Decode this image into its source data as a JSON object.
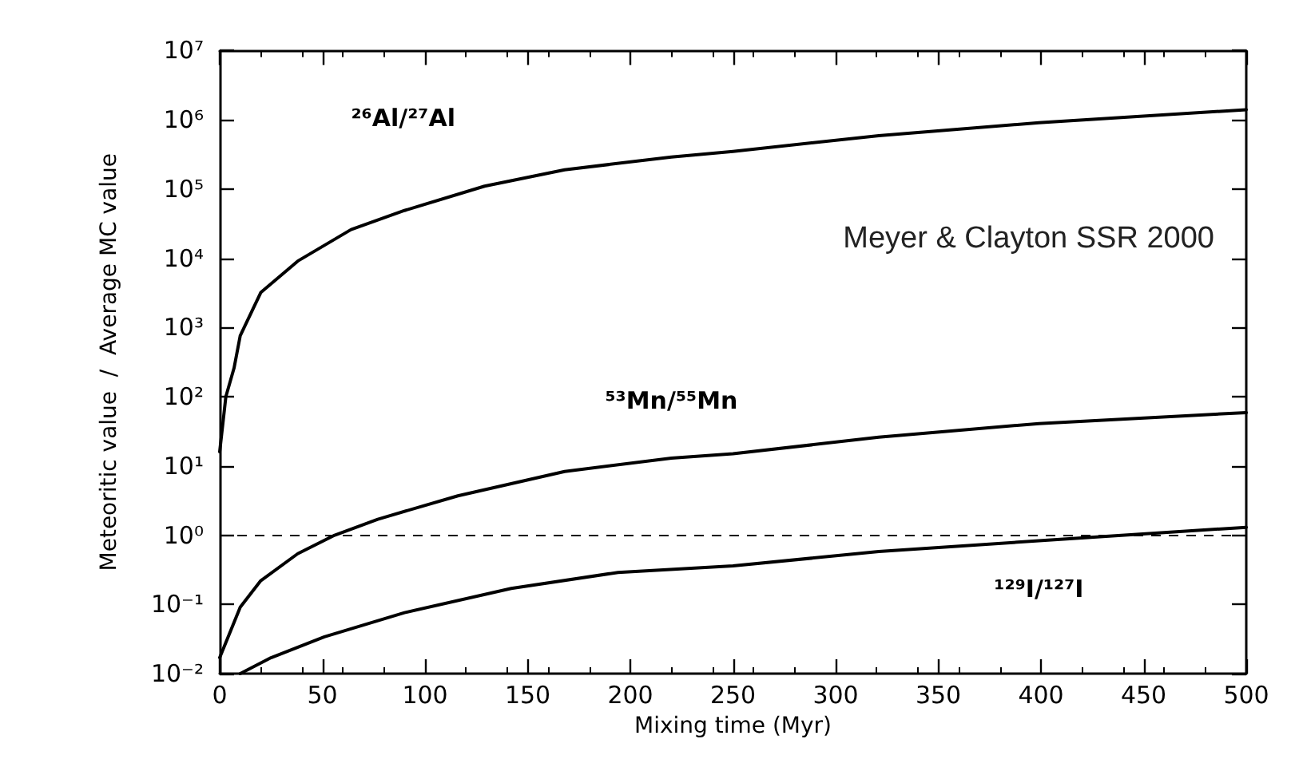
{
  "chart_data": {
    "type": "line",
    "xlabel": "Mixing time (Myr)",
    "ylabel": "Meteoritic value  /  Average MC value",
    "annotations": [
      "Meyer & Clayton SSR 2000"
    ],
    "log": "y",
    "grid": false,
    "marker": "none",
    "line_style": "solid",
    "xlim": [
      0,
      500
    ],
    "xticks": [
      0,
      50,
      100,
      150,
      200,
      250,
      300,
      350,
      400,
      450,
      500
    ],
    "ylim": [
      0.01,
      10000000
    ],
    "yticks": [
      {
        "value": 0.01,
        "label": "10⁻²"
      },
      {
        "value": 0.1,
        "label": "10⁻¹"
      },
      {
        "value": 1,
        "label": "10⁰"
      },
      {
        "value": 10,
        "label": "10¹"
      },
      {
        "value": 100,
        "label": "10²"
      },
      {
        "value": 1000,
        "label": "10³"
      },
      {
        "value": 10000,
        "label": "10⁴"
      },
      {
        "value": 100000,
        "label": "10⁵"
      },
      {
        "value": 1000000,
        "label": "10⁶"
      },
      {
        "value": 10000000,
        "label": "10⁷"
      }
    ],
    "ref_lines": [
      {
        "axis": "y",
        "value": 1,
        "line_style": "dashed",
        "color": "#000000"
      }
    ],
    "series": [
      {
        "name": "²⁶Al/²⁷Al",
        "color": "#000000",
        "x": [
          0,
          3,
          7,
          10,
          20,
          38,
          64,
          90,
          129,
          168,
          220,
          250,
          321,
          399,
          500
        ],
        "values": [
          16,
          100,
          260,
          760,
          3200,
          9100,
          26000,
          49000,
          110000,
          190000,
          290000,
          350000,
          590000,
          910000,
          1400000
        ]
      },
      {
        "name": "⁵³Mn/⁵⁵Mn",
        "color": "#000000",
        "x": [
          0,
          10,
          20,
          38,
          56,
          77,
          116,
          168,
          220,
          250,
          321,
          399,
          500
        ],
        "values": [
          0.017,
          0.091,
          0.22,
          0.54,
          1.0,
          1.7,
          3.7,
          8.3,
          13,
          15,
          26,
          41,
          59
        ]
      },
      {
        "name": "¹²⁹I/¹²⁷I",
        "color": "#000000",
        "x": [
          10,
          25,
          51,
          90,
          142,
          194,
          250,
          321,
          399,
          500
        ],
        "values": [
          0.01,
          0.017,
          0.034,
          0.076,
          0.17,
          0.29,
          0.36,
          0.58,
          0.83,
          1.3
        ]
      }
    ]
  }
}
